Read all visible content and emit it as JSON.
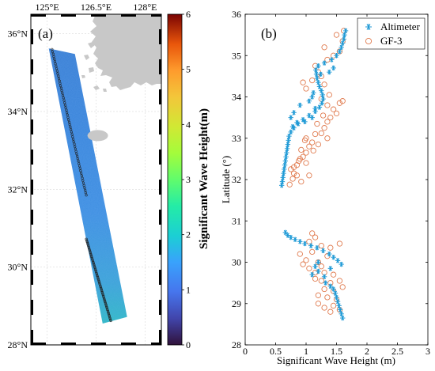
{
  "chart_data": [
    {
      "type": "map",
      "panel_label": "(a)",
      "x_ticks": [
        "125°E",
        "126.5°E",
        "128°E"
      ],
      "y_ticks": [
        "28°N",
        "30°N",
        "32°N",
        "34°N",
        "36°N"
      ],
      "xlim": [
        124.5,
        128.5
      ],
      "ylim": [
        28,
        36.5
      ],
      "colorbar": {
        "label": "Significant Wave Height(m)",
        "ticks": [
          "0",
          "1",
          "2",
          "3",
          "4",
          "5",
          "6"
        ],
        "range": [
          0,
          6
        ],
        "colormap": "turbo"
      },
      "swath_corners_lonlat": [
        [
          125.05,
          35.62
        ],
        [
          125.85,
          35.48
        ],
        [
          127.45,
          28.72
        ],
        [
          126.7,
          28.55
        ]
      ],
      "altimeter_track_lonlat": [
        [
          [
            125.15,
            35.6
          ],
          [
            126.2,
            31.85
          ]
        ],
        [
          [
            126.2,
            30.72
          ],
          [
            126.95,
            28.62
          ]
        ]
      ],
      "colors": {
        "land": "#c8c8c8",
        "track": "#222222"
      }
    },
    {
      "type": "scatter",
      "panel_label": "(b)",
      "xlabel": "Significant Wave Height (m)",
      "ylabel": "Latitude (°)",
      "xlim": [
        0,
        3
      ],
      "ylim": [
        28,
        36
      ],
      "x_ticks": [
        "0",
        "0.5",
        "1",
        "1.5",
        "2",
        "2.5",
        "3"
      ],
      "y_ticks": [
        "28",
        "29",
        "30",
        "31",
        "32",
        "33",
        "34",
        "35",
        "36"
      ],
      "legend_position": "top-right",
      "series": [
        {
          "name": "Altimeter",
          "marker": "asterisk",
          "color": "#1f9ad6",
          "points": [
            [
              0.6,
              31.86
            ],
            [
              0.61,
              31.95
            ],
            [
              0.62,
              32.05
            ],
            [
              0.63,
              32.15
            ],
            [
              0.64,
              32.25
            ],
            [
              0.65,
              32.35
            ],
            [
              0.66,
              32.45
            ],
            [
              0.67,
              32.55
            ],
            [
              0.68,
              32.65
            ],
            [
              0.69,
              32.75
            ],
            [
              0.7,
              32.85
            ],
            [
              0.71,
              32.95
            ],
            [
              0.72,
              33.05
            ],
            [
              0.75,
              33.15
            ],
            [
              0.8,
              33.25
            ],
            [
              0.87,
              33.35
            ],
            [
              0.95,
              33.45
            ],
            [
              1.05,
              33.55
            ],
            [
              1.15,
              33.65
            ],
            [
              1.22,
              33.75
            ],
            [
              1.26,
              33.85
            ],
            [
              1.28,
              33.95
            ],
            [
              1.27,
              34.05
            ],
            [
              1.25,
              34.15
            ],
            [
              1.22,
              34.25
            ],
            [
              1.2,
              34.35
            ],
            [
              1.18,
              34.45
            ],
            [
              1.17,
              34.55
            ],
            [
              1.16,
              34.65
            ],
            [
              1.2,
              34.75
            ],
            [
              1.3,
              34.82
            ],
            [
              1.42,
              34.9
            ],
            [
              1.5,
              35.0
            ],
            [
              1.55,
              35.1
            ],
            [
              1.58,
              35.2
            ],
            [
              1.6,
              35.3
            ],
            [
              1.62,
              35.4
            ],
            [
              1.63,
              35.5
            ],
            [
              1.65,
              35.6
            ],
            [
              0.75,
              33.5
            ],
            [
              0.8,
              33.62
            ],
            [
              0.9,
              33.8
            ],
            [
              1.05,
              33.9
            ],
            [
              1.1,
              34.0
            ],
            [
              1.12,
              34.1
            ],
            [
              0.78,
              33.28
            ],
            [
              0.85,
              33.38
            ],
            [
              0.98,
              33.4
            ],
            [
              1.1,
              33.5
            ],
            [
              1.15,
              33.72
            ],
            [
              1.24,
              34.55
            ],
            [
              1.38,
              34.6
            ],
            [
              1.45,
              34.7
            ],
            [
              0.66,
              30.72
            ],
            [
              0.7,
              30.65
            ],
            [
              0.75,
              30.6
            ],
            [
              0.82,
              30.55
            ],
            [
              0.9,
              30.5
            ],
            [
              0.98,
              30.45
            ],
            [
              1.08,
              30.4
            ],
            [
              1.18,
              30.35
            ],
            [
              1.28,
              30.28
            ],
            [
              1.38,
              30.2
            ],
            [
              1.45,
              30.12
            ],
            [
              1.52,
              30.04
            ],
            [
              1.58,
              29.95
            ],
            [
              1.2,
              30.0
            ],
            [
              1.15,
              29.9
            ],
            [
              1.2,
              29.78
            ],
            [
              1.3,
              29.65
            ],
            [
              1.32,
              29.5
            ],
            [
              1.4,
              29.42
            ],
            [
              1.45,
              29.35
            ],
            [
              1.48,
              29.25
            ],
            [
              1.5,
              29.15
            ],
            [
              1.52,
              29.05
            ],
            [
              1.54,
              28.95
            ],
            [
              1.56,
              28.85
            ],
            [
              1.58,
              28.75
            ],
            [
              1.6,
              28.65
            ],
            [
              1.1,
              29.7
            ],
            [
              1.4,
              29.85
            ]
          ]
        },
        {
          "name": "GF-3",
          "marker": "circle",
          "color": "#e07b4f",
          "points": [
            [
              0.73,
              31.88
            ],
            [
              0.78,
              32.02
            ],
            [
              0.8,
              32.15
            ],
            [
              0.75,
              32.25
            ],
            [
              0.85,
              32.35
            ],
            [
              0.88,
              32.45
            ],
            [
              0.95,
              32.55
            ],
            [
              1.0,
              32.65
            ],
            [
              0.92,
              32.72
            ],
            [
              1.05,
              32.8
            ],
            [
              1.1,
              32.9
            ],
            [
              1.0,
              33.0
            ],
            [
              1.15,
              33.1
            ],
            [
              1.25,
              33.12
            ],
            [
              1.3,
              33.25
            ],
            [
              1.18,
              33.35
            ],
            [
              1.35,
              33.4
            ],
            [
              1.4,
              33.5
            ],
            [
              1.28,
              33.55
            ],
            [
              1.5,
              33.6
            ],
            [
              1.45,
              33.7
            ],
            [
              1.35,
              33.8
            ],
            [
              1.55,
              33.85
            ],
            [
              1.25,
              33.95
            ],
            [
              1.38,
              34.05
            ],
            [
              1.6,
              33.9
            ],
            [
              1.3,
              34.3
            ],
            [
              1.1,
              34.4
            ],
            [
              1.0,
              34.2
            ],
            [
              1.2,
              34.6
            ],
            [
              1.15,
              34.75
            ],
            [
              1.35,
              34.9
            ],
            [
              1.45,
              35.0
            ],
            [
              1.3,
              35.2
            ],
            [
              1.55,
              35.1
            ],
            [
              1.6,
              35.35
            ],
            [
              1.5,
              35.5
            ],
            [
              1.62,
              35.6
            ],
            [
              0.95,
              34.35
            ],
            [
              1.25,
              34.5
            ],
            [
              0.8,
              32.3
            ],
            [
              0.9,
              32.5
            ],
            [
              1.0,
              32.4
            ],
            [
              0.85,
              32.1
            ],
            [
              0.92,
              31.95
            ],
            [
              1.05,
              32.1
            ],
            [
              1.12,
              32.7
            ],
            [
              1.2,
              32.85
            ],
            [
              0.98,
              32.95
            ],
            [
              1.35,
              33.0
            ],
            [
              1.1,
              30.7
            ],
            [
              1.15,
              30.6
            ],
            [
              1.05,
              30.5
            ],
            [
              1.25,
              30.4
            ],
            [
              1.4,
              30.35
            ],
            [
              1.55,
              30.45
            ],
            [
              1.1,
              30.25
            ],
            [
              0.9,
              30.2
            ],
            [
              1.0,
              30.05
            ],
            [
              1.2,
              30.0
            ],
            [
              1.25,
              29.9
            ],
            [
              1.05,
              29.85
            ],
            [
              1.3,
              29.75
            ],
            [
              1.45,
              29.7
            ],
            [
              1.15,
              29.6
            ],
            [
              1.25,
              29.55
            ],
            [
              1.4,
              29.5
            ],
            [
              1.55,
              29.55
            ],
            [
              1.3,
              29.35
            ],
            [
              1.45,
              29.3
            ],
            [
              1.2,
              29.2
            ],
            [
              1.35,
              29.15
            ],
            [
              1.2,
              29.0
            ],
            [
              1.3,
              28.9
            ],
            [
              1.45,
              28.95
            ],
            [
              1.55,
              28.85
            ],
            [
              1.4,
              28.8
            ],
            [
              1.6,
              29.4
            ],
            [
              0.95,
              29.95
            ],
            [
              1.35,
              30.15
            ],
            [
              1.5,
              29.1
            ],
            [
              1.15,
              29.75
            ]
          ]
        }
      ]
    }
  ]
}
